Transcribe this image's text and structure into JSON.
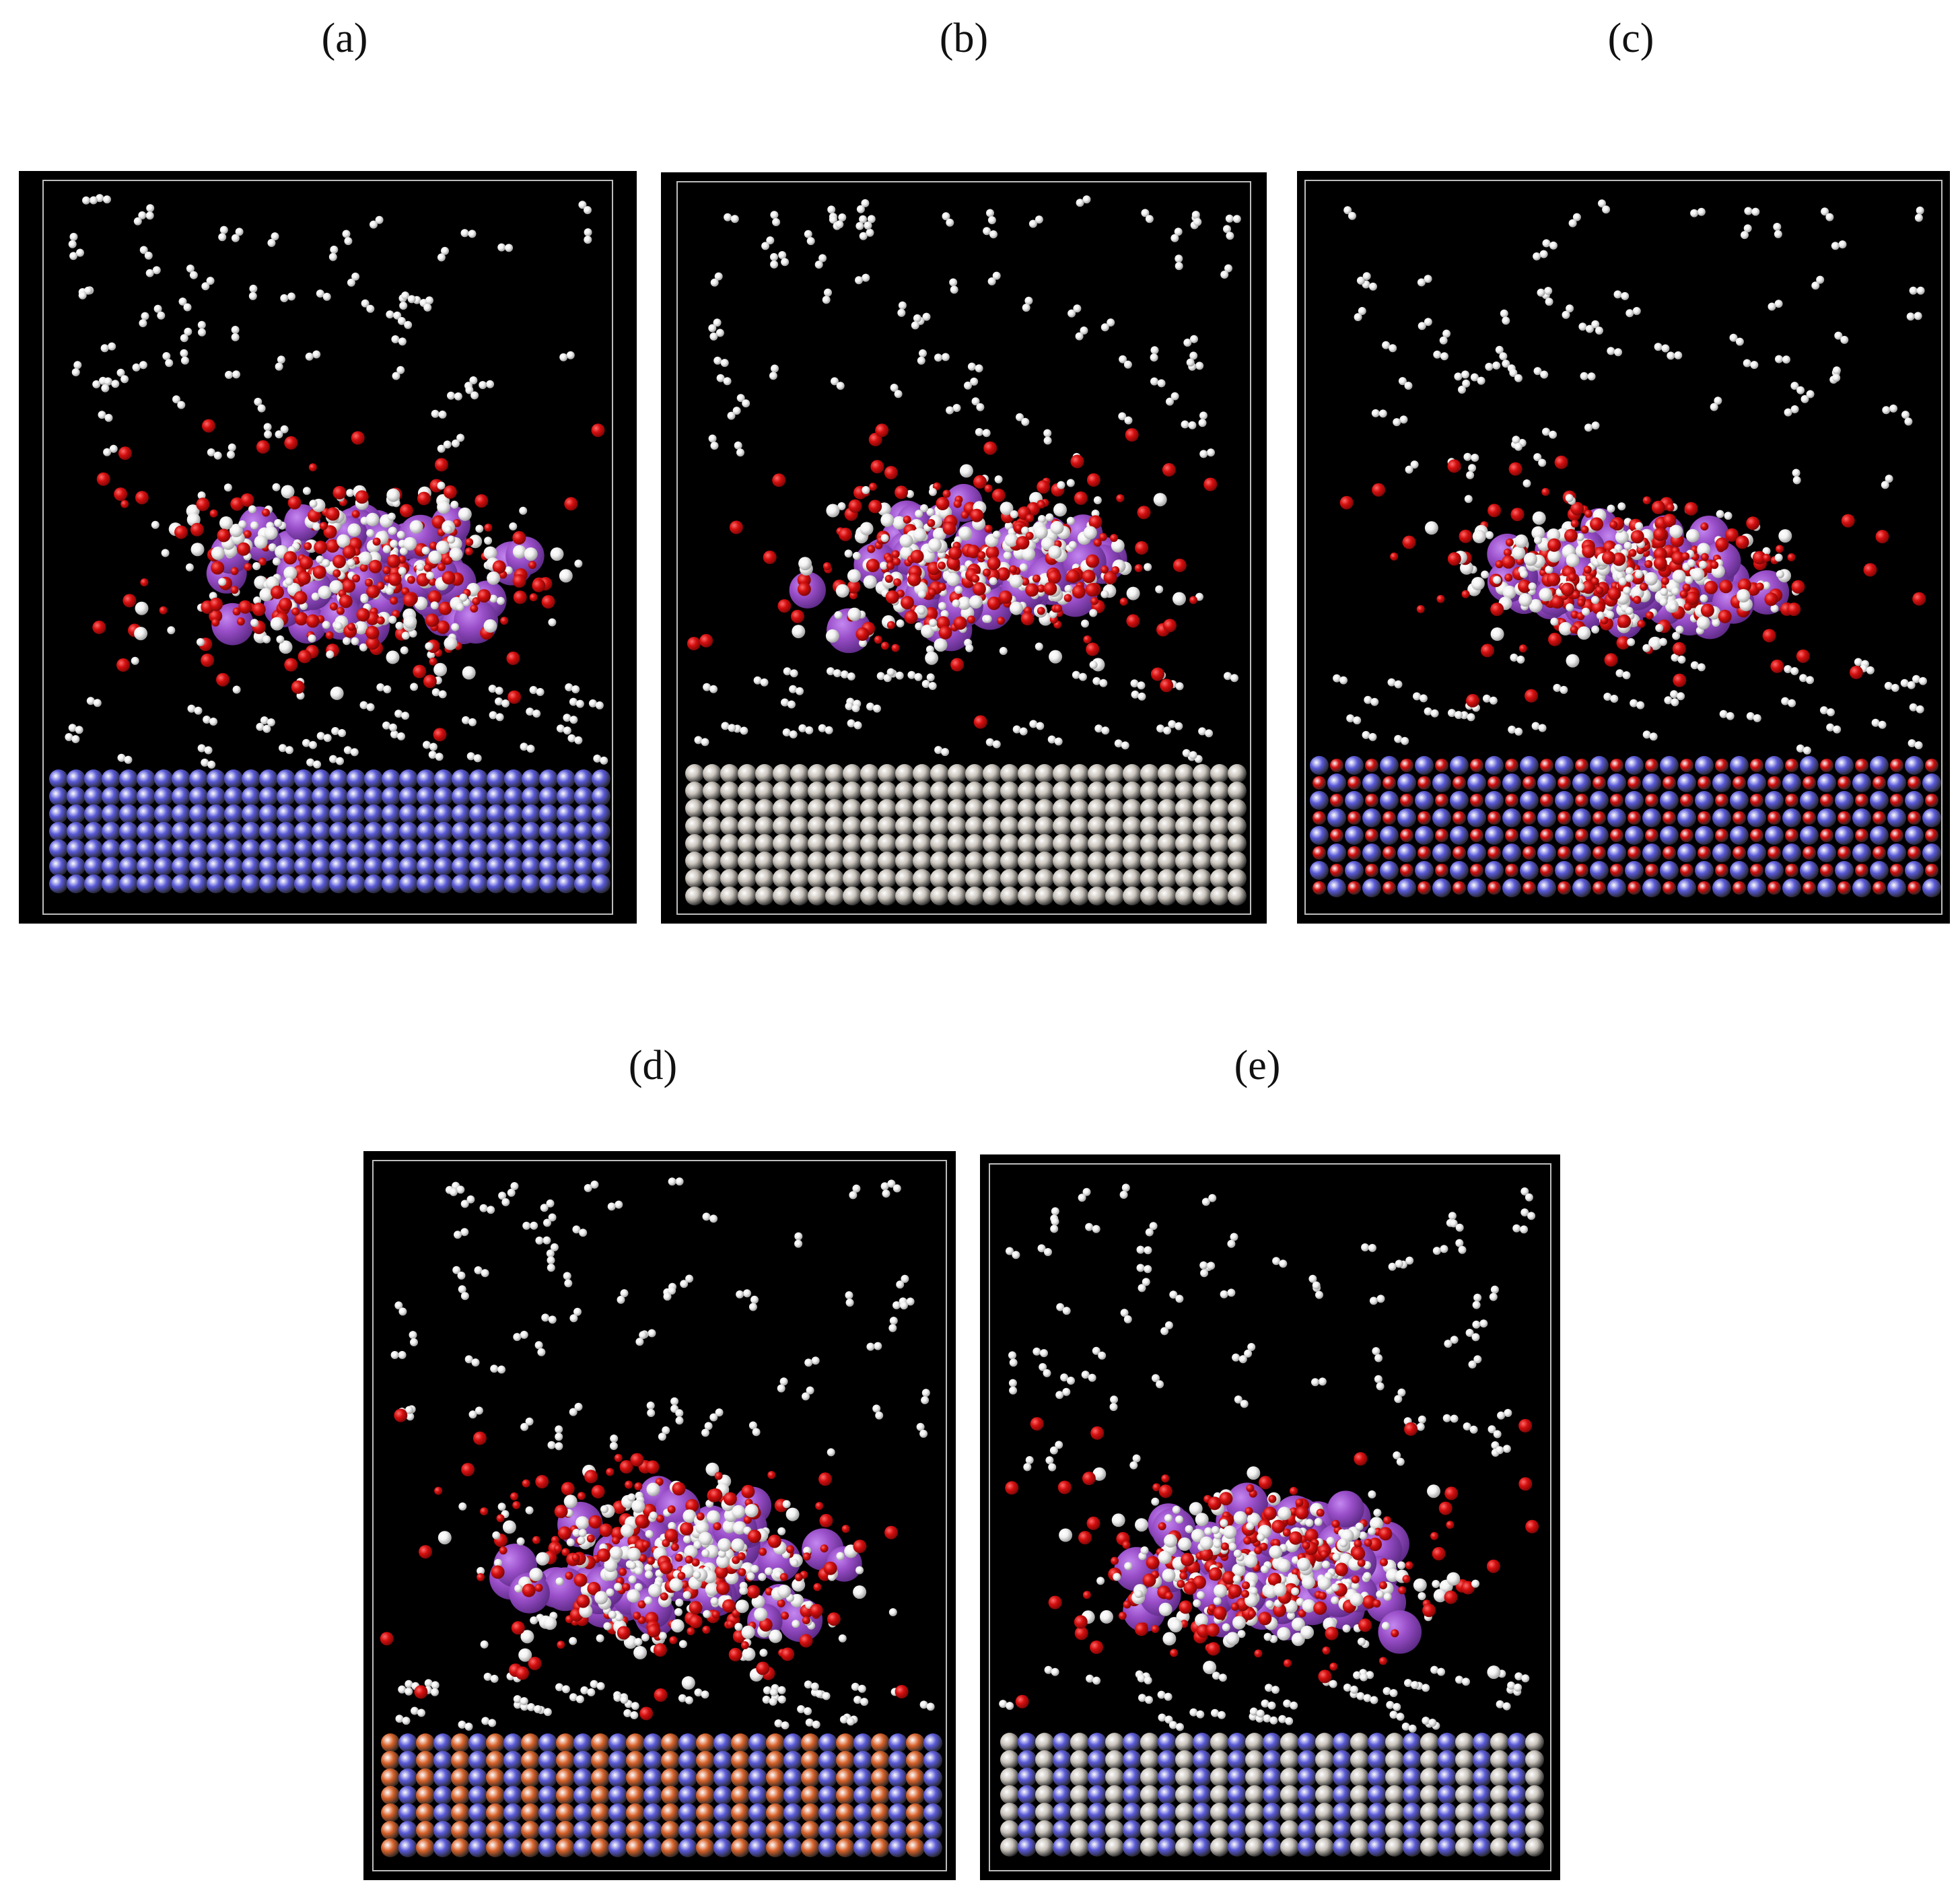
{
  "figure": {
    "panels": [
      {
        "id": "a",
        "label": "(a)",
        "substrate": {
          "pattern": "solid",
          "colors": [
            "#5a5ad8"
          ]
        }
      },
      {
        "id": "b",
        "label": "(b)",
        "substrate": {
          "pattern": "solid",
          "colors": [
            "#c9c3bb"
          ]
        }
      },
      {
        "id": "c",
        "label": "(c)",
        "substrate": {
          "pattern": "checker",
          "colors": [
            "#5a5ad8",
            "#d40f0f"
          ]
        }
      },
      {
        "id": "d",
        "label": "(d)",
        "substrate": {
          "pattern": "stripes",
          "colors": [
            "#d8622a",
            "#5a5ad8"
          ]
        }
      },
      {
        "id": "e",
        "label": "(e)",
        "substrate": {
          "pattern": "stripes",
          "colors": [
            "#c9c3bb",
            "#5a5ad8"
          ]
        }
      }
    ],
    "colors": {
      "background": "#000000",
      "cluster_large": "#9a4fc9",
      "oxygen": "#d40f0f",
      "hydrogen": "#f2f2f2",
      "box_outline": "#bdbdbd"
    }
  }
}
